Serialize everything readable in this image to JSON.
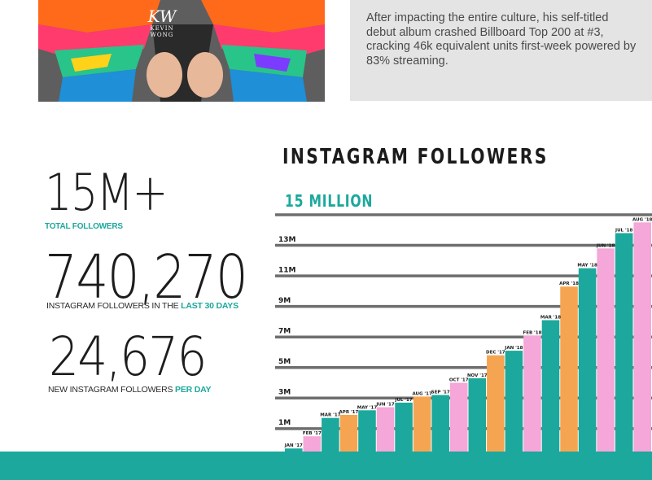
{
  "photo": {
    "watermark_logo": "KW",
    "watermark_text": "KEVIN WONG",
    "colors": [
      "#ff6a1a",
      "#ff3b6e",
      "#29c48a",
      "#1f8fd8",
      "#ffd21a",
      "#7b3cff"
    ]
  },
  "blurb": {
    "text": "After impacting the entire culture, his self-titled debut album crashed Billboard Top 200 at #3, cracking 46k equivalent units first-week powered by 83% streaming."
  },
  "stats": {
    "total": {
      "value": "15M+",
      "label": "TOTAL FOLLOWERS"
    },
    "last30": {
      "value": "740,270",
      "label_prefix": "INSTAGRAM FOLLOWERS IN THE ",
      "label_emph": "LAST 30 DAYS"
    },
    "perday": {
      "value": "24,676",
      "label_prefix": "NEW INSTAGRAM FOLLOWERS ",
      "label_emph": "PER DAY"
    }
  },
  "chart_data": {
    "type": "bar",
    "title": "INSTAGRAM FOLLOWERS",
    "subtitle": "15 MILLION",
    "y_ticks": [
      {
        "label": "13M",
        "value": 13
      },
      {
        "label": "11M",
        "value": 11
      },
      {
        "label": "9M",
        "value": 9
      },
      {
        "label": "7M",
        "value": 7
      },
      {
        "label": "5M",
        "value": 5
      },
      {
        "label": "3M",
        "value": 3
      },
      {
        "label": "1M",
        "value": 1
      }
    ],
    "ylim": [
      0,
      15.5
    ],
    "categories": [
      "JAN '17",
      "FEB '17",
      "MAR '17",
      "APR '17",
      "MAY '17",
      "JUN '17",
      "JUL '17",
      "AUG '17",
      "SEP '17",
      "OCT '17",
      "NOV '17",
      "DEC '17",
      "JAN '18",
      "FEB '18",
      "MAR '18",
      "APR '18",
      "MAY '18",
      "JUN '18",
      "JUL '18",
      "AUG '18"
    ],
    "values": [
      0.2,
      1.0,
      2.2,
      2.4,
      2.7,
      2.9,
      3.2,
      3.6,
      3.7,
      4.5,
      4.8,
      6.3,
      6.6,
      7.6,
      8.6,
      10.8,
      12.0,
      13.3,
      14.3,
      15.0
    ],
    "colors": [
      "#1ca89c",
      "#f4a7d8",
      "#1ca89c",
      "#f5a552",
      "#1ca89c",
      "#f4a7d8",
      "#1ca89c",
      "#f5a552",
      "#1ca89c",
      "#f4a7d8",
      "#1ca89c",
      "#f5a552",
      "#1ca89c",
      "#f4a7d8",
      "#1ca89c",
      "#f5a552",
      "#1ca89c",
      "#f4a7d8",
      "#1ca89c",
      "#f4a7d8"
    ],
    "grid": true,
    "line_color": "#6e6e6e"
  },
  "band_color": "#1ca89c"
}
